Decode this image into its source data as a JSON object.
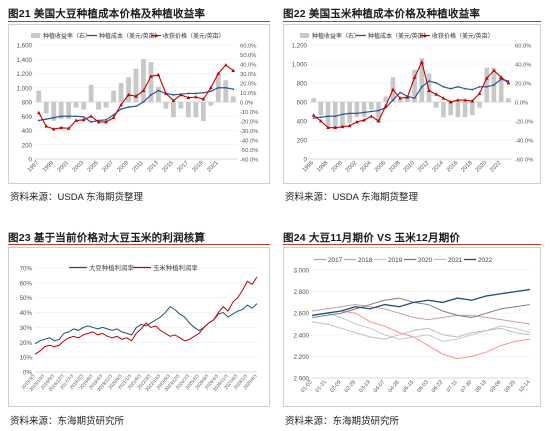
{
  "chart_data": [
    {
      "id": "fig21",
      "type": "bar+line",
      "title": "图21 美国大豆种植成本价格及种植收益率",
      "source": "资料来源：USDA 东海期货整理",
      "legend": [
        {
          "label": "种植收益率（右）",
          "kind": "bar"
        },
        {
          "label": "种植成本（美元/英亩）",
          "kind": "line"
        },
        {
          "label": "收获价格（美元/英亩）",
          "kind": "line-marker"
        }
      ],
      "colors": {
        "bar": "#c8c8c8",
        "cost": "#2f5597",
        "price": "#c00000"
      },
      "left_ticks": [
        "0",
        "200",
        "400",
        "600",
        "800",
        "1,000",
        "1,200",
        "1,400",
        "1,600"
      ],
      "right_ticks": [
        "-60.0%",
        "-50.0%",
        "-40.0%",
        "-30.0%",
        "-20.0%",
        "-10.0%",
        "0.0%",
        "10.0%",
        "20.0%",
        "30.0%",
        "40.0%",
        "50.0%",
        "60.0%"
      ],
      "ylim_left": [
        0,
        1600
      ],
      "ylim_right": [
        -60,
        60
      ],
      "x_tick_labels": [
        "1997",
        "1999",
        "2001",
        "2003",
        "2005",
        "2007",
        "2009",
        "2011",
        "2013",
        "2015",
        "2017",
        "2019",
        "2021"
      ],
      "years": [
        1997,
        1998,
        1999,
        2000,
        2001,
        2002,
        2003,
        2004,
        2005,
        2006,
        2007,
        2008,
        2009,
        2010,
        2011,
        2012,
        2013,
        2014,
        2015,
        2016,
        2017,
        2018,
        2019,
        2020,
        2021,
        2022,
        2023
      ],
      "return_pct": [
        12,
        -12,
        -20,
        -18,
        -18,
        -6,
        -8,
        18,
        -8,
        -6,
        12,
        20,
        26,
        35,
        45,
        42,
        16,
        -7,
        -16,
        -7,
        -16,
        -16,
        -20,
        -4,
        29,
        23,
        6
      ],
      "cost": [
        540,
        560,
        580,
        600,
        600,
        600,
        590,
        520,
        540,
        550,
        620,
        700,
        730,
        740,
        800,
        900,
        960,
        920,
        900,
        910,
        920,
        920,
        930,
        950,
        1000,
        1000,
        980
      ],
      "price": [
        650,
        460,
        420,
        440,
        430,
        540,
        550,
        600,
        520,
        520,
        580,
        760,
        900,
        880,
        960,
        1160,
        1180,
        920,
        820,
        900,
        860,
        870,
        840,
        1000,
        1200,
        1320,
        1240
      ]
    },
    {
      "id": "fig22",
      "type": "bar+line",
      "title": "图22 美国玉米种植成本价格及种植收益率",
      "source": "资料来源：USDA 东海期货整理",
      "legend": [
        {
          "label": "种植收益率（右）",
          "kind": "bar"
        },
        {
          "label": "种植成本（美元/英亩）",
          "kind": "line"
        },
        {
          "label": "收获价格（美元/英亩）",
          "kind": "line-marker"
        }
      ],
      "colors": {
        "bar": "#c8c8c8",
        "cost": "#2f5597",
        "price": "#c00000"
      },
      "left_ticks": [
        "0",
        "200",
        "400",
        "600",
        "800",
        "1,000",
        "1,200"
      ],
      "right_ticks": [
        "-60.0%",
        "-40.0%",
        "-20.0%",
        "0.0%",
        "20.0%",
        "40.0%",
        "60.0%"
      ],
      "ylim_left": [
        0,
        1200
      ],
      "ylim_right": [
        -60,
        60
      ],
      "x_tick_labels": [
        "1996",
        "1998",
        "2000",
        "2002",
        "2004",
        "2006",
        "2008",
        "2010",
        "2012",
        "2014",
        "2016",
        "2018",
        "2020",
        "2022"
      ],
      "years": [
        1996,
        1997,
        1998,
        1999,
        2000,
        2001,
        2002,
        2003,
        2004,
        2005,
        2006,
        2007,
        2008,
        2009,
        2010,
        2011,
        2012,
        2013,
        2014,
        2015,
        2016,
        2017,
        2018,
        2019,
        2020,
        2021,
        2022,
        2023
      ],
      "return_pct": [
        4,
        -14,
        -26,
        -28,
        -26,
        -22,
        -16,
        -16,
        -8,
        -22,
        6,
        26,
        2,
        6,
        34,
        46,
        30,
        -6,
        -16,
        -14,
        -16,
        -16,
        -14,
        -6,
        36,
        36,
        26,
        4
      ],
      "cost": [
        430,
        440,
        450,
        450,
        470,
        480,
        480,
        490,
        500,
        510,
        540,
        620,
        700,
        660,
        640,
        760,
        820,
        800,
        760,
        740,
        760,
        740,
        730,
        760,
        760,
        780,
        840,
        820
      ],
      "price": [
        460,
        400,
        330,
        330,
        340,
        350,
        390,
        410,
        450,
        400,
        560,
        730,
        640,
        650,
        860,
        1020,
        720,
        680,
        640,
        600,
        620,
        620,
        610,
        690,
        850,
        930,
        860,
        800
      ]
    },
    {
      "id": "fig23",
      "type": "line",
      "title": "图23 基于当前价格对大豆玉米的利润核算",
      "source": "资料来源：东海期货研究所",
      "legend": [
        {
          "label": "大豆种植利润率",
          "color": "#1f4e79"
        },
        {
          "label": "玉米种植利润率",
          "color": "#c00000"
        }
      ],
      "y_ticks": [
        "0%",
        "10%",
        "20%",
        "30%",
        "40%",
        "50%",
        "60%",
        "70%"
      ],
      "ylim": [
        0,
        70
      ],
      "x_tick_labels": [
        "2015/3/3",
        "2015/10/3",
        "2016/5/3",
        "2016/12/3",
        "2017/7/3",
        "2018/2/3",
        "2018/9/3",
        "2019/4/3",
        "2019/11/3",
        "2020/6/3",
        "2021/1/3",
        "2021/8/3",
        "2022/3/3",
        "2022/10/3",
        "2023/5/3",
        "2023/12/3",
        "2024/7/3",
        "2025/2/3",
        "2025/9/3",
        "2026/4/3",
        "2026/11/3",
        "2027/6/3",
        "2028/1/3",
        "2028/8/3"
      ],
      "soy": [
        19,
        21,
        22,
        23,
        21,
        22,
        26,
        27,
        29,
        28,
        30,
        31,
        30,
        29,
        30,
        29,
        28,
        29,
        27,
        26,
        25,
        30,
        32,
        31,
        33,
        35,
        37,
        40,
        44,
        42,
        39,
        37,
        33,
        30,
        28,
        30,
        33,
        35,
        39,
        40,
        37,
        39,
        41,
        42,
        45,
        43,
        46
      ],
      "corn": [
        12,
        14,
        17,
        18,
        17,
        18,
        21,
        23,
        24,
        23,
        25,
        26,
        27,
        25,
        26,
        24,
        23,
        24,
        22,
        23,
        21,
        26,
        29,
        33,
        30,
        31,
        28,
        26,
        24,
        25,
        23,
        21,
        22,
        24,
        26,
        30,
        33,
        35,
        40,
        44,
        41,
        47,
        50,
        55,
        61,
        59,
        64
      ]
    },
    {
      "id": "fig24",
      "type": "line",
      "title": "图24 大豆11月期价 VS 玉米12月期价",
      "source": "资料来源：东海期货研究所",
      "legend": [
        {
          "label": "2017",
          "color": "#c9a0a0"
        },
        {
          "label": "2018",
          "color": "#ff8f8f"
        },
        {
          "label": "2019",
          "color": "#c8c8c8"
        },
        {
          "label": "2020",
          "color": "#7f7f7f"
        },
        {
          "label": "2021",
          "color": "#bfbfbf"
        },
        {
          "label": "2022",
          "color": "#1f4e79"
        }
      ],
      "y_ticks": [
        "2.000",
        "2.200",
        "2.400",
        "2.600",
        "2.800",
        "3.000"
      ],
      "ylim": [
        2.0,
        3.0
      ],
      "x_tick_labels": [
        "01-02",
        "01-21",
        "02-09",
        "02-28",
        "03-19",
        "04-07",
        "04-26",
        "05-15",
        "06-03",
        "06-22",
        "07-11",
        "07-30",
        "08-18",
        "09-06",
        "09-25",
        "10-14"
      ],
      "series": [
        {
          "name": "2017",
          "values": [
            2.62,
            2.64,
            2.66,
            2.68,
            2.66,
            2.64,
            2.6,
            2.56,
            2.54,
            2.56,
            2.58,
            2.58,
            2.56,
            2.54,
            2.52,
            2.5
          ]
        },
        {
          "name": "2018",
          "values": [
            2.58,
            2.6,
            2.62,
            2.6,
            2.52,
            2.48,
            2.42,
            2.38,
            2.3,
            2.22,
            2.18,
            2.2,
            2.24,
            2.3,
            2.34,
            2.36
          ]
        },
        {
          "name": "2019",
          "values": [
            2.58,
            2.6,
            2.56,
            2.5,
            2.46,
            2.4,
            2.36,
            2.38,
            2.4,
            2.34,
            2.36,
            2.4,
            2.44,
            2.48,
            2.46,
            2.42
          ]
        },
        {
          "name": "2020",
          "values": [
            2.56,
            2.58,
            2.6,
            2.64,
            2.68,
            2.72,
            2.74,
            2.7,
            2.68,
            2.62,
            2.58,
            2.56,
            2.6,
            2.64,
            2.66,
            2.68
          ]
        },
        {
          "name": "2021",
          "values": [
            2.52,
            2.5,
            2.46,
            2.42,
            2.38,
            2.36,
            2.4,
            2.44,
            2.46,
            2.4,
            2.38,
            2.42,
            2.44,
            2.46,
            2.42,
            2.4
          ]
        },
        {
          "name": "2022",
          "values": [
            2.58,
            2.6,
            2.62,
            2.66,
            2.64,
            2.68,
            2.66,
            2.7,
            2.72,
            2.7,
            2.74,
            2.72,
            2.76,
            2.78,
            2.8,
            2.82
          ]
        }
      ]
    }
  ]
}
